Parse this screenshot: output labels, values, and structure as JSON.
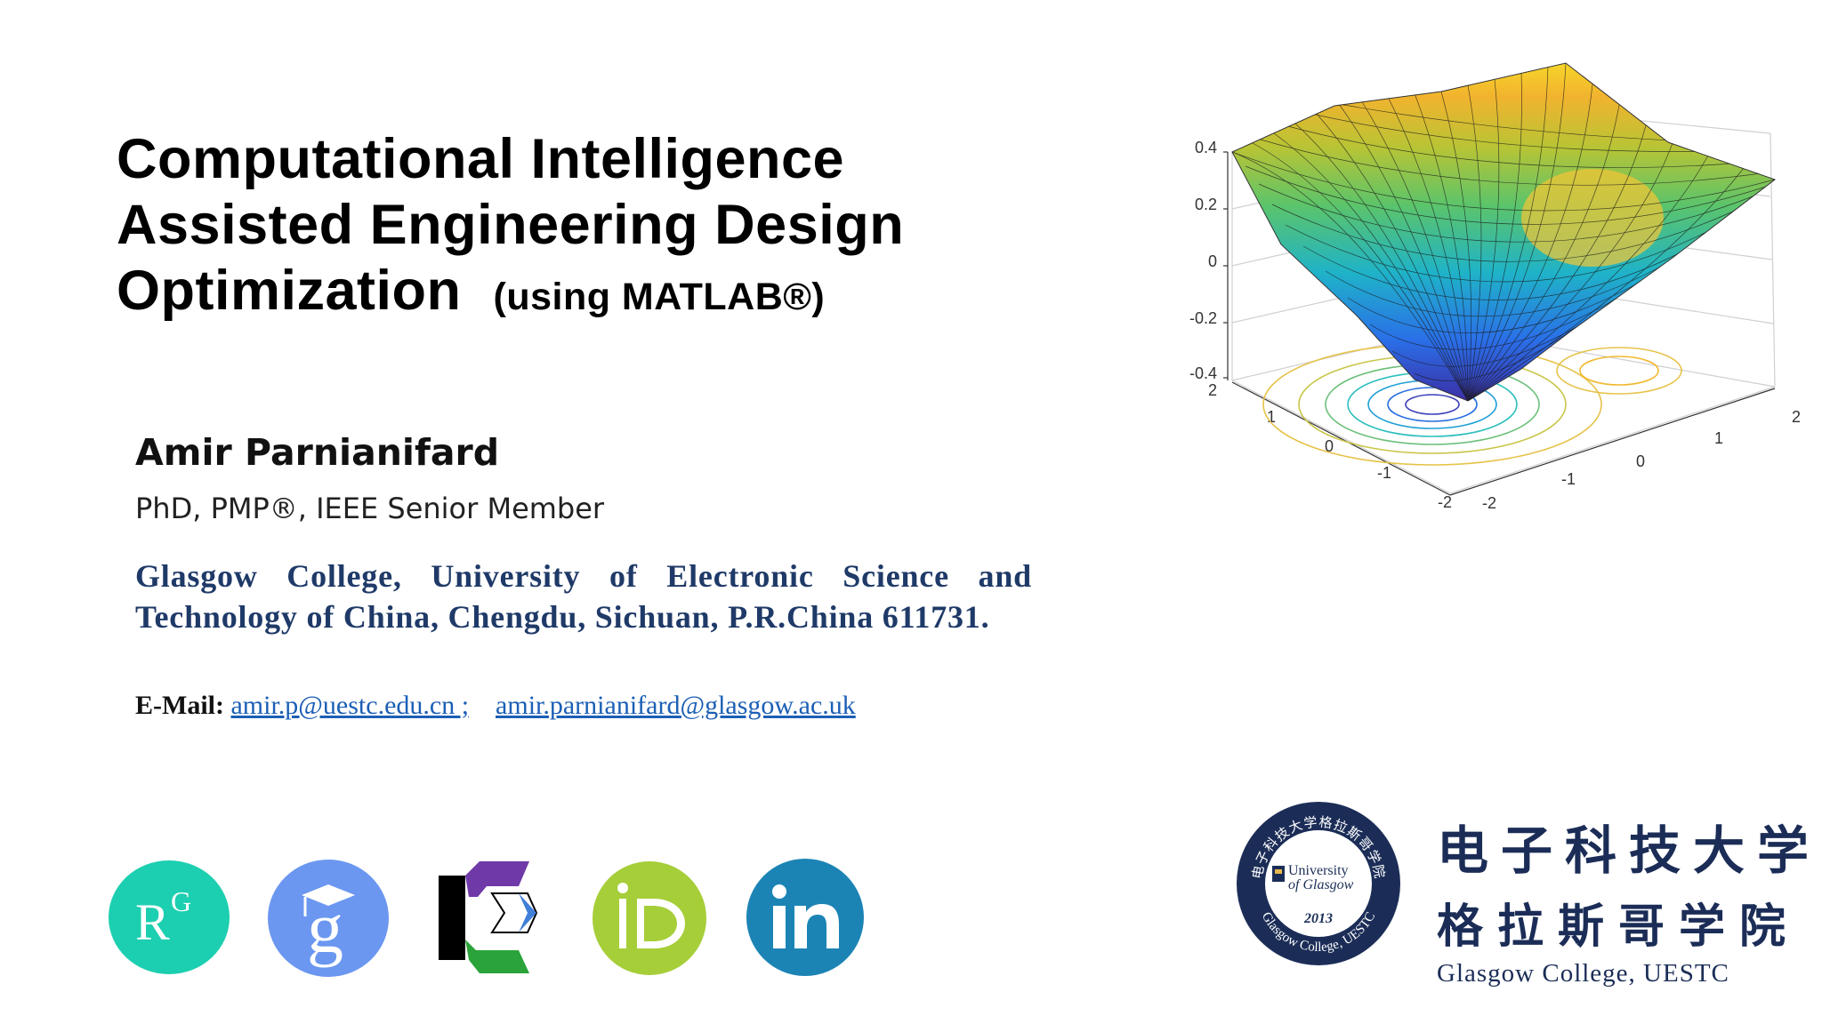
{
  "title": {
    "line1": "Computational Intelligence",
    "line2": "Assisted Engineering Design",
    "line3": "Optimization",
    "subtitle": "(using MATLAB®)"
  },
  "author": {
    "name": "Amir Parnianifard",
    "credentials": "PhD, PMP®, IEEE Senior Member"
  },
  "affiliation": "Glasgow College, University of Electronic Science and Technology of China, Chengdu, Sichuan, P.R.China 611731.",
  "email": {
    "label": "E-Mail:",
    "address1": "amir.p@uestc.edu.cn ;",
    "address2": "amir.parnianifard@glasgow.ac.uk"
  },
  "chart_data": {
    "type": "surface",
    "function": "z = x·exp(−x²−y²) style 3D surface with contour projection",
    "zlim": [
      -0.45,
      0.45
    ],
    "z_ticks": [
      "0.4",
      "0.2",
      "0",
      "-0.2",
      "-0.4"
    ],
    "x_ticks": [
      "2",
      "1",
      "0",
      "-1",
      "-2"
    ],
    "y_ticks": [
      "-2",
      "-1",
      "0",
      "1",
      "2"
    ],
    "colormap": "parula",
    "grid": true
  },
  "social_icons": [
    {
      "name": "researchgate",
      "text": "RG"
    },
    {
      "name": "google-scholar",
      "text": "g"
    },
    {
      "name": "publons",
      "text": ""
    },
    {
      "name": "orcid",
      "text": "iD"
    },
    {
      "name": "linkedin",
      "text": "in"
    }
  ],
  "institution": {
    "cn_line1": "电子科技大学",
    "cn_line2": "格拉斯哥学院",
    "en_name": "Glasgow College, UESTC",
    "seal_top": "电子科技大学格拉斯哥学院",
    "seal_center_1": "University",
    "seal_center_2": "of Glasgow",
    "seal_year": "2013",
    "seal_bottom": "Glasgow College, UESTC"
  },
  "colors": {
    "title": "#000000",
    "affiliation": "#1f3a68",
    "link": "#1b5fb5",
    "researchgate": "#1ccfb0",
    "google_scholar": "#6b97f0",
    "orcid": "#a6ce39",
    "linkedin": "#1c84b5",
    "uestc_navy": "#1b2d57"
  }
}
